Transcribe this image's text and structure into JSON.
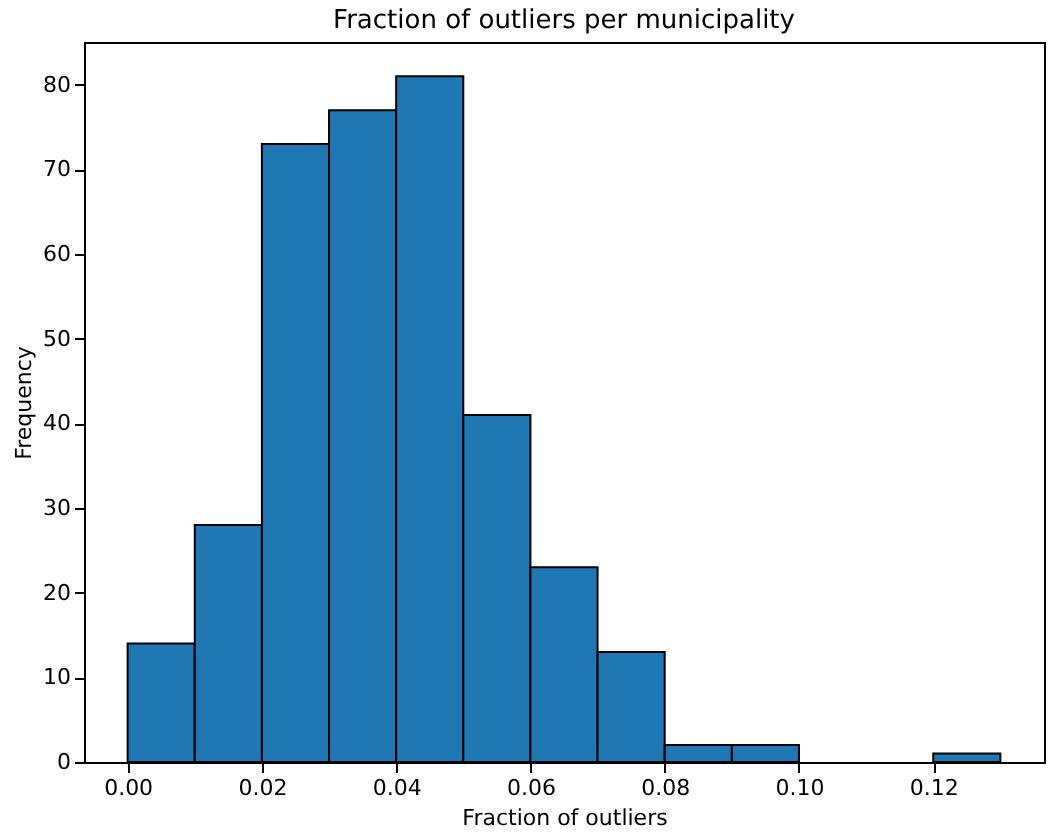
{
  "chart_data": {
    "type": "histogram",
    "title": "Fraction of outliers per municipality",
    "xlabel": "Fraction of outliers",
    "ylabel": "Frequency",
    "bins": [
      0,
      0.01,
      0.02,
      0.03,
      0.04,
      0.05,
      0.06,
      0.07,
      0.08,
      0.09,
      0.1,
      0.11,
      0.12,
      0.13
    ],
    "values": [
      14,
      28,
      73,
      77,
      81,
      41,
      23,
      13,
      2,
      2,
      0,
      0,
      1
    ],
    "color": "#1f77b4",
    "xlim": [
      -0.0065,
      0.1365
    ],
    "xticks": [
      {
        "value": 0,
        "label": "0.00"
      },
      {
        "value": 0.02,
        "label": "0.02"
      },
      {
        "value": 0.04,
        "label": "0.04"
      },
      {
        "value": 0.06,
        "label": "0.06"
      },
      {
        "value": 0.08,
        "label": "0.08"
      },
      {
        "value": 0.1,
        "label": "0.10"
      },
      {
        "value": 0.12,
        "label": "0.12"
      }
    ],
    "ylim": [
      0,
      85.05
    ],
    "yticks": [
      0,
      10,
      20,
      30,
      40,
      50,
      60,
      70,
      80
    ],
    "grid": false
  }
}
